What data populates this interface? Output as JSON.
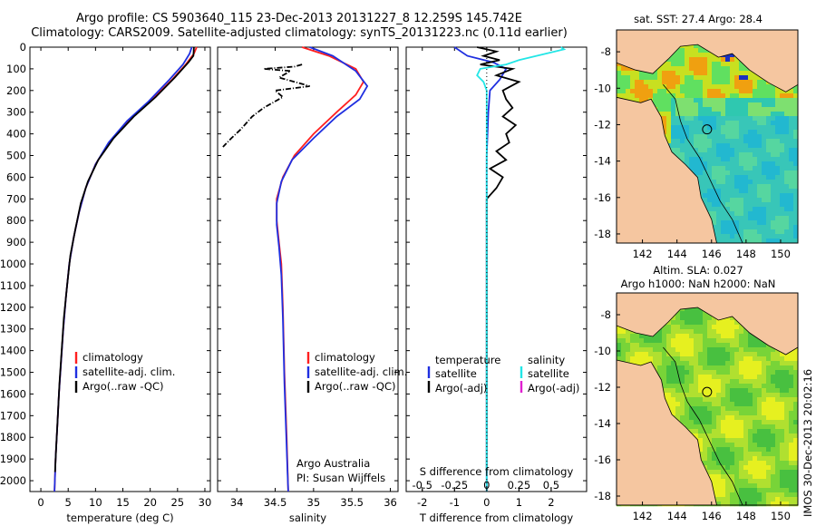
{
  "header": {
    "line1": "Argo profile: CS 5903640_115 23-Dec-2013 20131227_8 12.259S 145.742E",
    "line2": "Climatology: CARS2009. Satellite-adjusted climatology: synTS_20131223.nc (0.11d earlier)"
  },
  "colors": {
    "climatology": "#ff1f1f",
    "satellite": "#1f2fe0",
    "argo": "#000000",
    "sat_salinity": "#22e6e6",
    "argo_salinity_adj": "#e020d0",
    "land": "#f5c6a0"
  },
  "chart_data": [
    {
      "type": "line",
      "name": "temperature",
      "xlabel": "temperature (deg C)",
      "xlim": [
        -2,
        31
      ],
      "xticks": [
        0,
        5,
        10,
        15,
        20,
        25,
        30
      ],
      "ylim": [
        2050,
        0
      ],
      "yticks": [
        0,
        100,
        200,
        300,
        400,
        500,
        600,
        700,
        800,
        900,
        1000,
        1100,
        1200,
        1300,
        1400,
        1500,
        1600,
        1700,
        1800,
        1900,
        2000
      ],
      "legend": [
        "climatology",
        "satellite-adj. clim.",
        "Argo(..raw -QC)"
      ],
      "series": [
        {
          "name": "climatology",
          "color": "#ff1f1f",
          "points": [
            [
              28.5,
              0
            ],
            [
              28.0,
              30
            ],
            [
              26.5,
              80
            ],
            [
              24.0,
              150
            ],
            [
              20.0,
              250
            ],
            [
              16.0,
              340
            ],
            [
              12.5,
              440
            ],
            [
              10.0,
              540
            ],
            [
              8.2,
              650
            ],
            [
              7.0,
              760
            ],
            [
              6.0,
              880
            ],
            [
              5.2,
              1000
            ],
            [
              4.6,
              1150
            ],
            [
              4.1,
              1300
            ],
            [
              3.7,
              1450
            ],
            [
              3.3,
              1600
            ],
            [
              3.0,
              1750
            ],
            [
              2.7,
              1900
            ],
            [
              2.5,
              2050
            ]
          ]
        },
        {
          "name": "satellite-adj. clim.",
          "color": "#1f2fe0",
          "points": [
            [
              27.6,
              0
            ],
            [
              27.2,
              30
            ],
            [
              26.0,
              80
            ],
            [
              23.5,
              150
            ],
            [
              19.7,
              250
            ],
            [
              15.8,
              340
            ],
            [
              12.4,
              440
            ],
            [
              10.0,
              540
            ],
            [
              8.2,
              650
            ],
            [
              7.0,
              760
            ],
            [
              6.0,
              880
            ],
            [
              5.2,
              1000
            ],
            [
              4.6,
              1150
            ],
            [
              4.1,
              1300
            ],
            [
              3.7,
              1450
            ],
            [
              3.3,
              1600
            ],
            [
              3.0,
              1750
            ],
            [
              2.7,
              1900
            ],
            [
              2.5,
              2050
            ]
          ]
        },
        {
          "name": "Argo(..raw -QC)",
          "color": "#000000",
          "points": [
            [
              28.0,
              0
            ],
            [
              27.9,
              40
            ],
            [
              27.0,
              70
            ],
            [
              24.5,
              140
            ],
            [
              21.0,
              230
            ],
            [
              17.0,
              320
            ],
            [
              13.3,
              420
            ],
            [
              10.5,
              520
            ],
            [
              8.6,
              620
            ],
            [
              7.3,
              720
            ],
            [
              6.3,
              840
            ],
            [
              5.4,
              960
            ],
            [
              4.8,
              1100
            ],
            [
              4.2,
              1250
            ],
            [
              3.8,
              1400
            ],
            [
              3.4,
              1550
            ],
            [
              3.1,
              1700
            ],
            [
              2.8,
              1850
            ],
            [
              2.6,
              1960
            ]
          ]
        }
      ]
    },
    {
      "type": "line",
      "name": "salinity",
      "xlabel": "salinity",
      "xlim": [
        33.75,
        36.1
      ],
      "xticks": [
        34,
        34.5,
        35,
        35.5,
        36
      ],
      "xtick_labels": [
        "34",
        "34.5",
        "35",
        "35.5",
        "36"
      ],
      "ylim": [
        2050,
        0
      ],
      "legend": [
        "climatology",
        "satellite-adj. clim.",
        "Argo(..raw -QC)"
      ],
      "annotation": [
        "Argo Australia",
        "PI: Susan Wijffels"
      ],
      "series": [
        {
          "name": "climatology",
          "color": "#ff1f1f",
          "points": [
            [
              34.85,
              0
            ],
            [
              35.2,
              40
            ],
            [
              35.55,
              100
            ],
            [
              35.65,
              160
            ],
            [
              35.55,
              220
            ],
            [
              35.3,
              300
            ],
            [
              35.0,
              400
            ],
            [
              34.75,
              500
            ],
            [
              34.6,
              600
            ],
            [
              34.52,
              700
            ],
            [
              34.52,
              800
            ],
            [
              34.55,
              900
            ],
            [
              34.58,
              1000
            ],
            [
              34.6,
              1200
            ],
            [
              34.62,
              1500
            ],
            [
              34.65,
              1800
            ],
            [
              34.67,
              2050
            ]
          ]
        },
        {
          "name": "satellite-adj. clim.",
          "color": "#1f2fe0",
          "points": [
            [
              34.95,
              0
            ],
            [
              35.25,
              40
            ],
            [
              35.55,
              110
            ],
            [
              35.7,
              180
            ],
            [
              35.6,
              240
            ],
            [
              35.3,
              320
            ],
            [
              35.0,
              420
            ],
            [
              34.72,
              520
            ],
            [
              34.58,
              620
            ],
            [
              34.52,
              720
            ],
            [
              34.52,
              820
            ],
            [
              34.55,
              920
            ],
            [
              34.58,
              1050
            ],
            [
              34.6,
              1250
            ],
            [
              34.62,
              1550
            ],
            [
              34.65,
              1850
            ],
            [
              34.67,
              2050
            ]
          ]
        },
        {
          "name": "Argo(..raw -QC)",
          "color": "#000000",
          "points": [
            [
              34.85,
              80
            ],
            [
              34.75,
              90
            ],
            [
              34.35,
              100
            ],
            [
              34.7,
              110
            ],
            [
              34.55,
              140
            ],
            [
              34.75,
              160
            ],
            [
              34.95,
              180
            ],
            [
              34.5,
              200
            ],
            [
              34.6,
              230
            ],
            [
              34.35,
              280
            ],
            [
              34.2,
              320
            ],
            [
              34.05,
              380
            ],
            [
              33.93,
              420
            ],
            [
              33.82,
              460
            ]
          ]
        }
      ]
    },
    {
      "type": "line",
      "name": "difference",
      "xlabel": "T difference from climatology",
      "xlabel_top": "S difference from climatology",
      "xlim": [
        -2.5,
        3.1
      ],
      "xticks": [
        -2,
        -1,
        0,
        1,
        2
      ],
      "xtick_labels": [
        "-2",
        "-1",
        "0",
        "1",
        "2"
      ],
      "sticks": [
        -0.5,
        -0.25,
        0,
        0.25,
        0.5
      ],
      "stick_labels": [
        "-0.5",
        "-0.25",
        "0",
        "0.25",
        "0.5"
      ],
      "ylim": [
        2050,
        0
      ],
      "legend_temperature": [
        "temperature",
        "satellite",
        "Argo(-adj)"
      ],
      "legend_salinity": [
        "salinity",
        "satellite",
        "Argo(-adj)"
      ],
      "series": [
        {
          "name": "T satellite",
          "color": "#1f2fe0",
          "points": [
            [
              -1.0,
              0
            ],
            [
              -0.6,
              40
            ],
            [
              0.2,
              70
            ],
            [
              0.6,
              100
            ],
            [
              0.4,
              150
            ],
            [
              0.1,
              200
            ],
            [
              0.05,
              300
            ],
            [
              0.0,
              500
            ],
            [
              0.0,
              1000
            ],
            [
              0.0,
              2050
            ]
          ]
        },
        {
          "name": "T Argo(-adj)",
          "color": "#000000",
          "points": [
            [
              -0.3,
              0
            ],
            [
              0.3,
              20
            ],
            [
              -0.1,
              40
            ],
            [
              0.4,
              60
            ],
            [
              -0.2,
              80
            ],
            [
              0.8,
              100
            ],
            [
              0.3,
              130
            ],
            [
              1.0,
              160
            ],
            [
              0.5,
              200
            ],
            [
              0.6,
              240
            ],
            [
              0.8,
              280
            ],
            [
              0.5,
              320
            ],
            [
              0.9,
              360
            ],
            [
              0.6,
              400
            ],
            [
              0.7,
              440
            ],
            [
              0.3,
              480
            ],
            [
              0.6,
              520
            ],
            [
              0.1,
              560
            ],
            [
              0.5,
              600
            ],
            [
              0.3,
              650
            ],
            [
              0.0,
              700
            ],
            [
              0.0,
              1000
            ],
            [
              0.0,
              1950
            ]
          ]
        },
        {
          "name": "S satellite",
          "color": "#22e6e6",
          "points": [
            [
              2.3,
              0
            ],
            [
              2.4,
              10
            ],
            [
              1.0,
              60
            ],
            [
              0.6,
              80
            ],
            [
              -0.2,
              100
            ],
            [
              -0.3,
              130
            ],
            [
              -0.1,
              160
            ],
            [
              0.0,
              200
            ],
            [
              0.0,
              400
            ],
            [
              0.0,
              2050
            ]
          ]
        }
      ]
    },
    {
      "type": "heatmap",
      "name": "sst_map",
      "title": "sat. SST: 27.4 Argo: 28.4",
      "xticks": [
        "142",
        "144",
        "146",
        "148",
        "150"
      ],
      "yticks": [
        "-8",
        "-10",
        "-12",
        "-14",
        "-16",
        "-18"
      ],
      "xlim": [
        140.5,
        151
      ],
      "ylim": [
        -18.5,
        -6.8
      ]
    },
    {
      "type": "heatmap",
      "name": "sla_map",
      "title": [
        "Altim. SLA: 0.027",
        "Argo h1000: NaN h2000: NaN"
      ],
      "xticks": [
        "142",
        "144",
        "146",
        "148",
        "150"
      ],
      "yticks": [
        "-8",
        "-10",
        "-12",
        "-14",
        "-16",
        "-18"
      ],
      "xlim": [
        140.5,
        151
      ],
      "ylim": [
        -18.5,
        -6.8
      ],
      "side_label": "IMOS 30-Dec-2013 20:02:16"
    }
  ]
}
